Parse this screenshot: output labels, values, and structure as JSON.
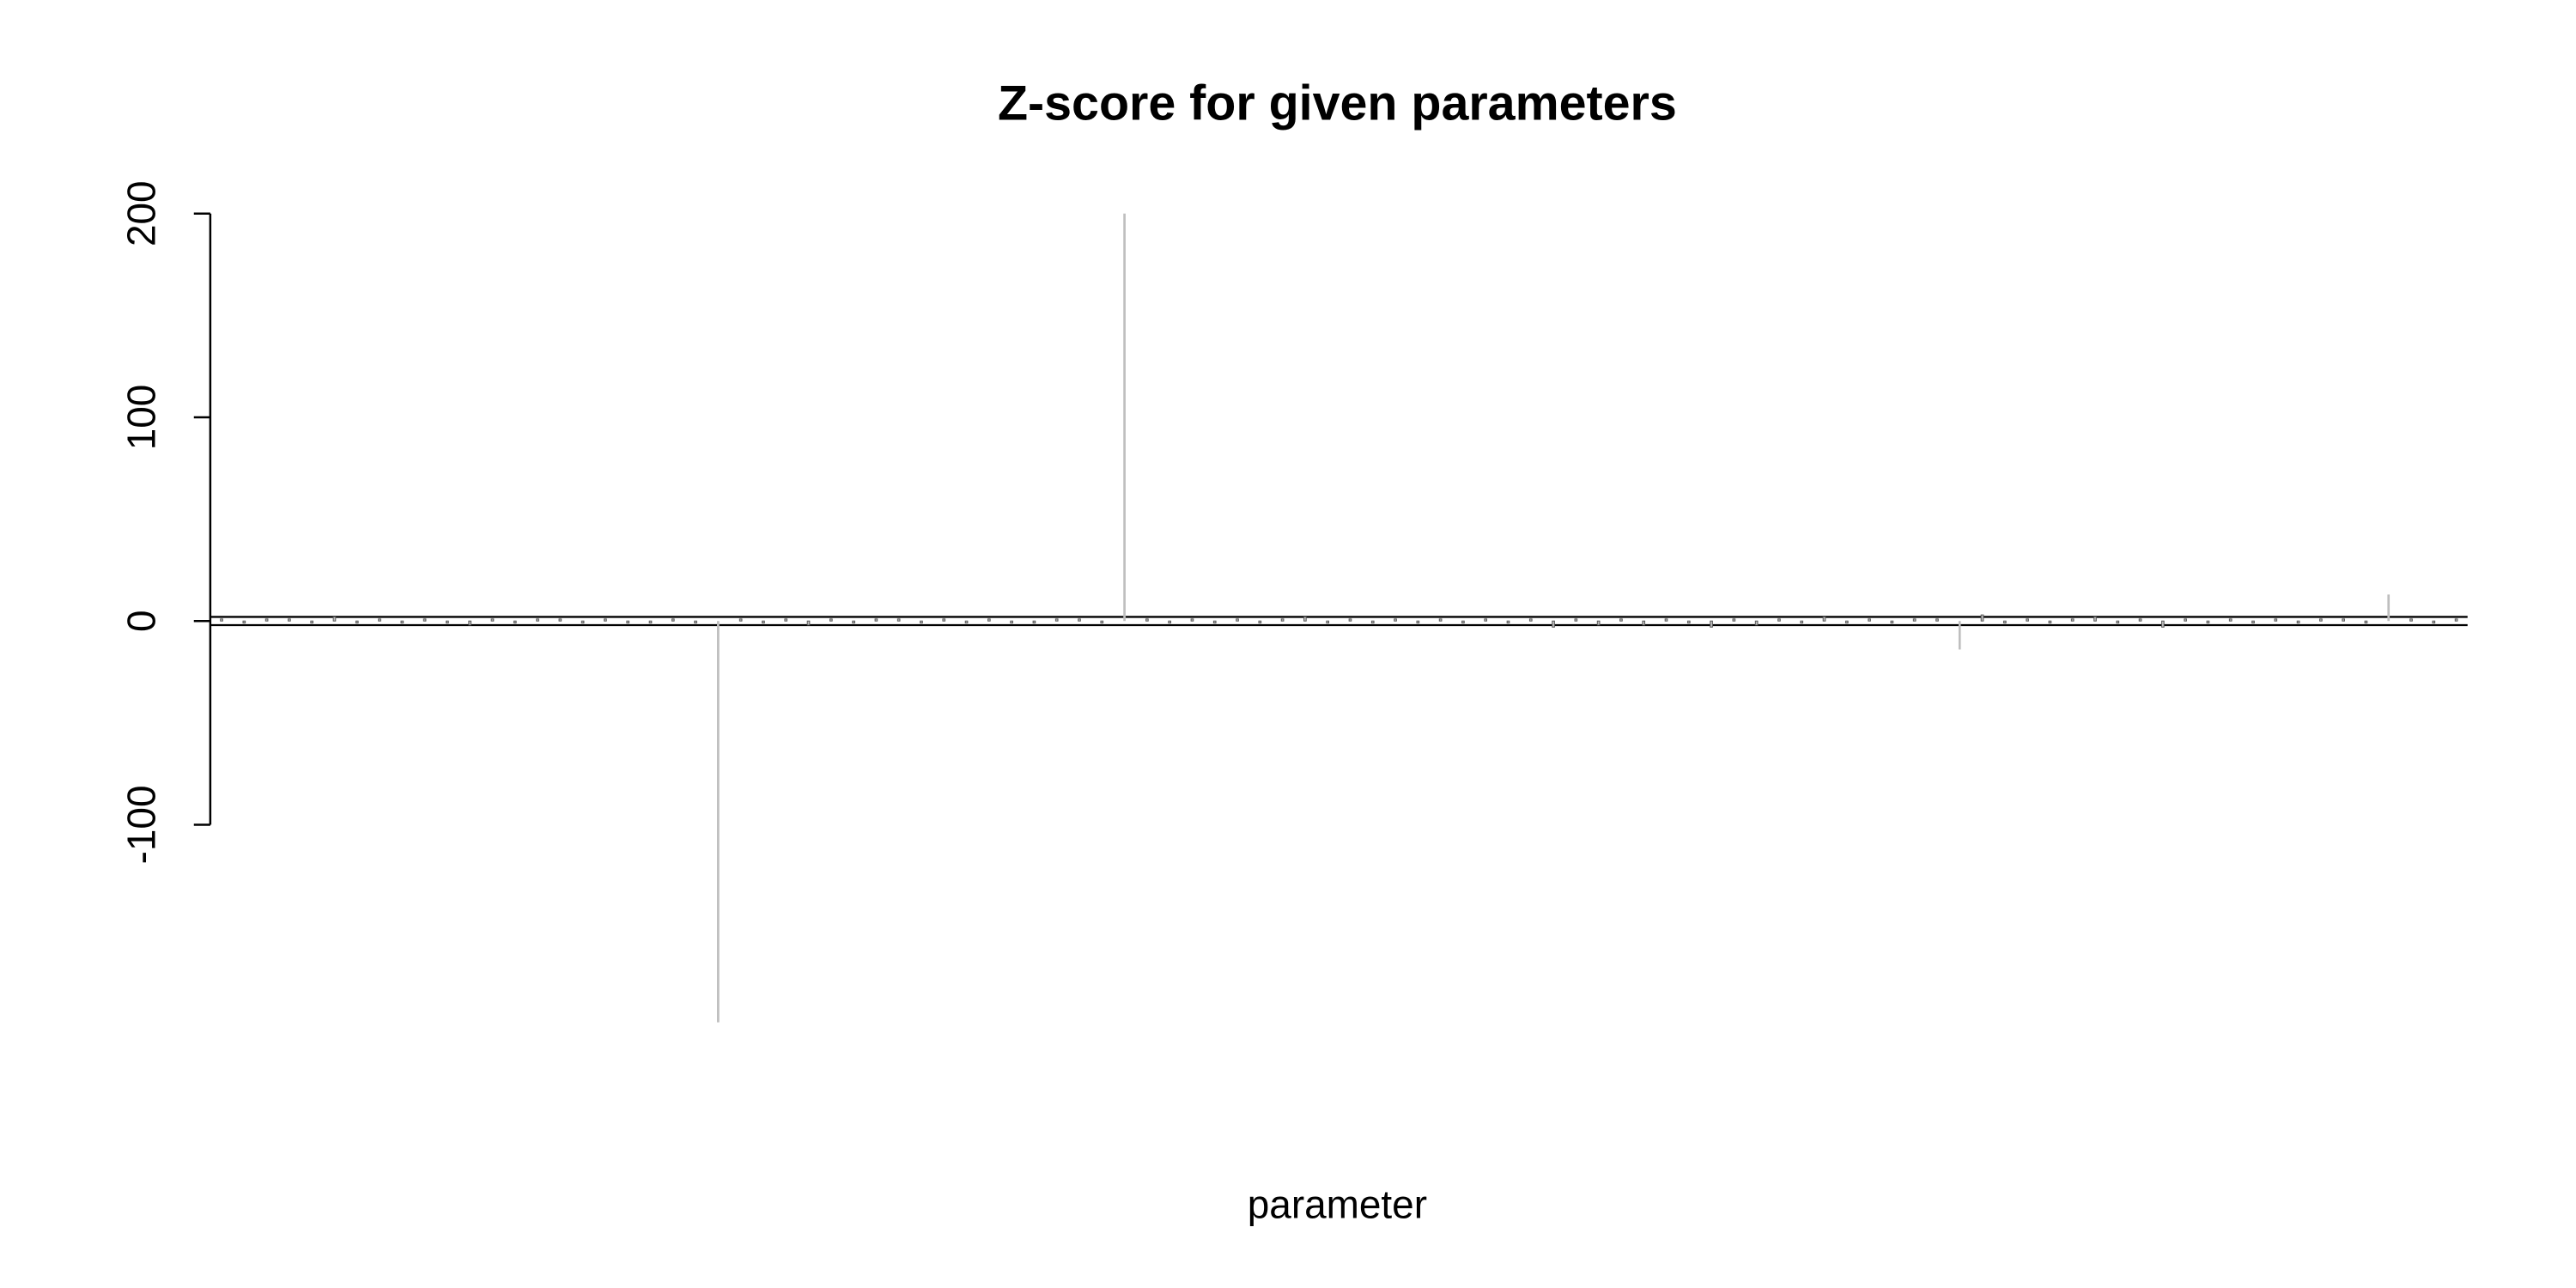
{
  "chart_data": {
    "type": "bar",
    "title": "Z-score for given parameters",
    "x_label": "parameter",
    "categories": [
      null,
      null,
      null,
      null,
      null,
      null,
      null,
      null,
      null,
      null,
      null,
      null,
      null,
      null,
      null,
      null,
      null,
      null,
      null,
      null,
      null,
      null,
      null,
      null,
      null,
      null,
      null,
      null,
      null,
      null,
      null,
      null,
      null,
      null,
      null,
      null,
      null,
      null,
      null,
      null,
      null,
      null,
      null,
      null,
      null,
      null,
      null,
      null,
      null,
      null,
      null,
      null,
      null,
      null,
      null,
      null,
      null,
      null,
      null,
      null,
      null,
      null,
      null,
      null,
      null,
      null,
      null,
      null,
      null,
      null,
      null,
      null,
      null,
      null,
      null,
      null,
      null,
      null,
      null,
      null,
      null,
      null,
      null,
      null,
      null,
      null,
      null,
      null,
      null,
      null,
      null,
      null,
      null,
      null,
      null,
      null,
      null,
      null,
      null,
      null
    ],
    "values": [
      1,
      -1,
      1,
      1,
      -1,
      2,
      -1,
      1,
      -1,
      1,
      -1,
      -2,
      1,
      -1,
      1,
      1,
      -1,
      1,
      -1,
      -1,
      1,
      -1,
      -197,
      1,
      -1,
      1,
      -2,
      1,
      -1,
      1,
      1,
      -1,
      1,
      -1,
      1,
      -1,
      -1,
      1,
      1,
      -1,
      200,
      1,
      -1,
      1,
      -1,
      1,
      -1,
      1,
      2,
      -1,
      1,
      -1,
      1,
      -1,
      1,
      -1,
      1,
      -1,
      1,
      -3,
      1,
      -2,
      1,
      -2,
      1,
      -1,
      -3,
      1,
      -2,
      1,
      -1,
      2,
      -1,
      1,
      -1,
      1,
      1,
      -14,
      3,
      -1,
      1,
      -1,
      1,
      2,
      -1,
      1,
      -3,
      1,
      -1,
      1,
      -1,
      1,
      -1,
      1,
      1,
      -1,
      13,
      1,
      -1,
      1
    ],
    "color": "#bebebe",
    "ylim": [
      -200,
      200
    ],
    "yticks": [
      -100,
      0,
      100,
      200
    ]
  }
}
